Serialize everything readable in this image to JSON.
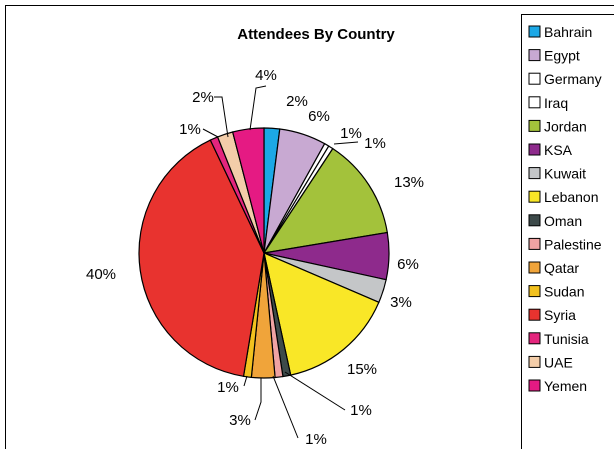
{
  "chart_data": {
    "type": "pie",
    "title": "Attendees By Country",
    "legend_position": "right",
    "categories": [
      "Bahrain",
      "Egypt",
      "Germany",
      "Iraq",
      "Jordan",
      "KSA",
      "Kuwait",
      "Lebanon",
      "Oman",
      "Palestine",
      "Qatar",
      "Sudan",
      "Syria",
      "Tunisia",
      "UAE",
      "Yemen"
    ],
    "values": [
      2,
      6,
      0.6,
      0.6,
      13,
      6,
      3,
      15,
      1,
      1,
      3,
      1,
      40,
      1,
      2,
      4
    ],
    "data_labels": [
      "2%",
      "6%",
      "1%",
      "1%",
      "13%",
      "6%",
      "3%",
      "15%",
      "1%",
      "1%",
      "3%",
      "1%",
      "40%",
      "1%",
      "2%",
      "4%"
    ],
    "colors": [
      "#1ca8e6",
      "#c8a9d2",
      "#ffffff",
      "#ffffff",
      "#a3c23b",
      "#8e2a8c",
      "#c4c6c8",
      "#f9e727",
      "#3d4a4a",
      "#f0a3a3",
      "#f0a43a",
      "#f2c11e",
      "#e8332f",
      "#e4257d",
      "#f3cda9",
      "#e51a83"
    ]
  }
}
